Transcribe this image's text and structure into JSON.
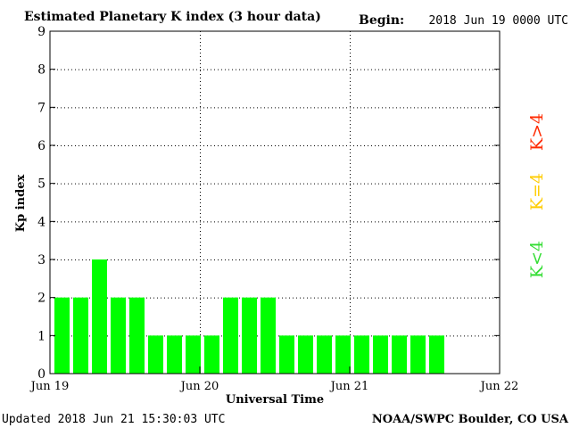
{
  "header": {
    "title": "Estimated Planetary K index (3 hour data)",
    "begin_label": "Begin:",
    "begin_value": "2018 Jun 19 0000 UTC"
  },
  "footer": {
    "updated": "Updated 2018 Jun 21 15:30:03 UTC",
    "source": "NOAA/SWPC Boulder, CO USA"
  },
  "side_legend": {
    "high": "K>4",
    "equal": "K=4",
    "low": "K<4"
  },
  "colors": {
    "bar_low": "#00ff00",
    "high": "#ff2a00",
    "equal": "#ffcc00",
    "low": "#33dd33",
    "grid": "#000000"
  },
  "chart_data": {
    "type": "bar",
    "title": "Estimated Planetary K index (3 hour data)",
    "xlabel": "Universal Time",
    "ylabel": "Kp index",
    "ylim": [
      0,
      9
    ],
    "yticks": [
      0,
      1,
      2,
      3,
      4,
      5,
      6,
      7,
      8,
      9
    ],
    "xticks": [
      "Jun 19",
      "Jun 20",
      "Jun 21",
      "Jun 22"
    ],
    "grid": true,
    "interval_hours": 3,
    "values": [
      2,
      2,
      3,
      2,
      2,
      1,
      1,
      1,
      1,
      2,
      2,
      2,
      1,
      1,
      1,
      1,
      1,
      1,
      1,
      1,
      1
    ]
  }
}
